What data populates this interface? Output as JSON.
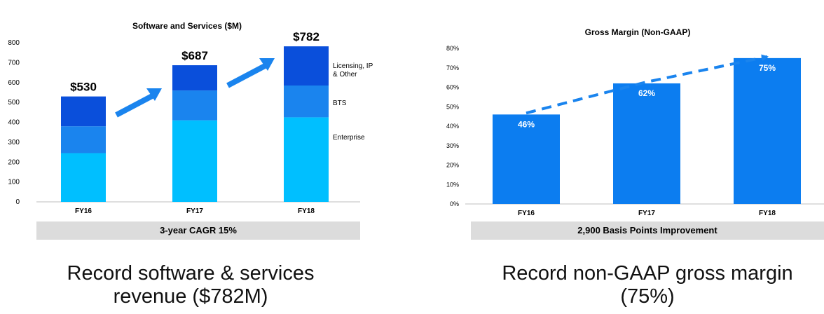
{
  "colors": {
    "enterprise": "#00bfff",
    "bts": "#1a84ee",
    "licensing": "#0a4fdb",
    "margin_bar": "#0c7df0",
    "arrow": "#1a84ee",
    "band": "#dcdcdc",
    "axis": "#bfbfbf"
  },
  "left_chart": {
    "title": "Software and Services ($M)",
    "band_text": "3-year CAGR 15%",
    "caption": "Record software & services revenue ($782M)"
  },
  "right_chart": {
    "title": "Gross Margin (Non-GAAP)",
    "band_text": "2,900 Basis Points Improvement",
    "caption": "Record non-GAAP gross margin (75%)"
  },
  "chart_data": [
    {
      "type": "bar",
      "stacked": true,
      "title": "Software and Services ($M)",
      "categories": [
        "FY16",
        "FY17",
        "FY18"
      ],
      "series": [
        {
          "name": "Enterprise",
          "values": [
            245,
            410,
            425
          ]
        },
        {
          "name": "BTS",
          "values": [
            135,
            150,
            160
          ]
        },
        {
          "name": "Licensing, IP & Other",
          "values": [
            150,
            127,
            197
          ]
        }
      ],
      "totals": [
        "$530",
        "$687",
        "$782"
      ],
      "ylim": [
        0,
        800
      ],
      "yticks": [
        "0",
        "100",
        "200",
        "300",
        "400",
        "500",
        "600",
        "700",
        "800"
      ],
      "grid": false,
      "legend": "right, labels beside last bar"
    },
    {
      "type": "bar",
      "title": "Gross Margin (Non-GAAP)",
      "categories": [
        "FY16",
        "FY17",
        "FY18"
      ],
      "values": [
        46,
        62,
        75
      ],
      "value_labels": [
        "46%",
        "62%",
        "75%"
      ],
      "ylim": [
        0,
        80
      ],
      "yticks": [
        "0%",
        "10%",
        "20%",
        "30%",
        "40%",
        "50%",
        "60%",
        "70%",
        "80%"
      ],
      "grid": false,
      "trend": "dashed arrow through bar tops"
    }
  ]
}
